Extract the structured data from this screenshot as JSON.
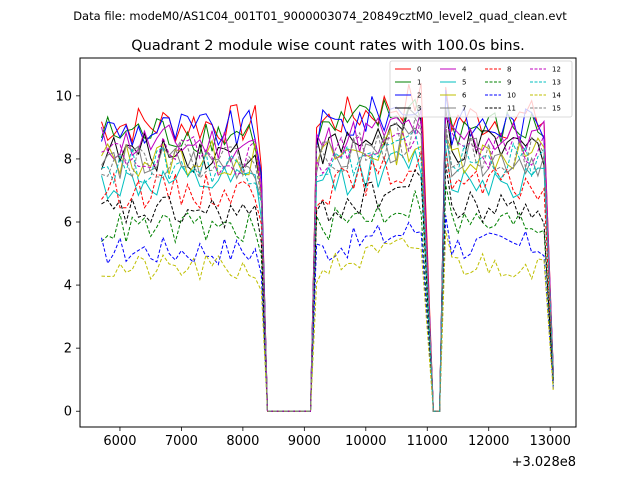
{
  "chart_data": {
    "type": "line",
    "suptitle": "Data file: modeM0/AS1C04_001T01_9000003074_20849cztM0_level2_quad_clean.evt",
    "title": "Quadrant 2 module wise count rates with 100.0s bins.",
    "xlabel": "",
    "ylabel": "",
    "x_offset_label": "+3.028e8",
    "xlim": [
      5350,
      13420
    ],
    "ylim": [
      -0.5,
      11.2
    ],
    "xticks": [
      6000,
      7000,
      8000,
      9000,
      10000,
      11000,
      12000,
      13000
    ],
    "xtick_labels": [
      "6000",
      "7000",
      "8000",
      "9000",
      "10000",
      "11000",
      "12000",
      "13000"
    ],
    "yticks": [
      0,
      2,
      4,
      6,
      8,
      10
    ],
    "ytick_labels": [
      "0",
      "2",
      "4",
      "6",
      "8",
      "10"
    ],
    "legend_location": "top-right",
    "legend_columns": 4,
    "segments": [
      {
        "start": 5700,
        "end": 8300
      },
      {
        "start": 9200,
        "end": 10950
      },
      {
        "start": 11300,
        "end": 12950
      }
    ],
    "gap_zero_x": [
      8400,
      8500,
      8600,
      8700,
      8800,
      8900,
      9000,
      9100
    ],
    "dip_zero_x": [
      11100,
      11200
    ],
    "series": [
      {
        "name": "0",
        "color": "#ff0000",
        "dashed": false,
        "level": 9.1,
        "peak": 10.6
      },
      {
        "name": "1",
        "color": "#008000",
        "dashed": false,
        "level": 8.8,
        "peak": 10.3
      },
      {
        "name": "2",
        "color": "#0000ff",
        "dashed": false,
        "level": 8.9,
        "peak": 10.5
      },
      {
        "name": "3",
        "color": "#000000",
        "dashed": false,
        "level": 8.2,
        "peak": 9.9
      },
      {
        "name": "4",
        "color": "#bf00bf",
        "dashed": false,
        "level": 8.5,
        "peak": 9.6
      },
      {
        "name": "5",
        "color": "#00bfbf",
        "dashed": false,
        "level": 7.2,
        "peak": 8.6
      },
      {
        "name": "6",
        "color": "#bfbf00",
        "dashed": false,
        "level": 8.0,
        "peak": 9.0
      },
      {
        "name": "7",
        "color": "#808080",
        "dashed": false,
        "level": 7.9,
        "peak": 9.2
      },
      {
        "name": "8",
        "color": "#ff0000",
        "dashed": true,
        "level": 7.0,
        "peak": 8.5
      },
      {
        "name": "9",
        "color": "#008000",
        "dashed": true,
        "level": 5.8,
        "peak": 7.4
      },
      {
        "name": "10",
        "color": "#0000ff",
        "dashed": true,
        "level": 5.1,
        "peak": 6.4
      },
      {
        "name": "11",
        "color": "#000000",
        "dashed": true,
        "level": 6.3,
        "peak": 8.1
      },
      {
        "name": "12",
        "color": "#bf00bf",
        "dashed": true,
        "level": 8.1,
        "peak": 9.3
      },
      {
        "name": "13",
        "color": "#00bfbf",
        "dashed": true,
        "level": 7.8,
        "peak": 8.9
      },
      {
        "name": "14",
        "color": "#bfbf00",
        "dashed": true,
        "level": 4.5,
        "peak": 5.9
      },
      {
        "name": "15",
        "color": "#808080",
        "dashed": true,
        "level": 8.0,
        "peak": 9.4
      }
    ]
  }
}
